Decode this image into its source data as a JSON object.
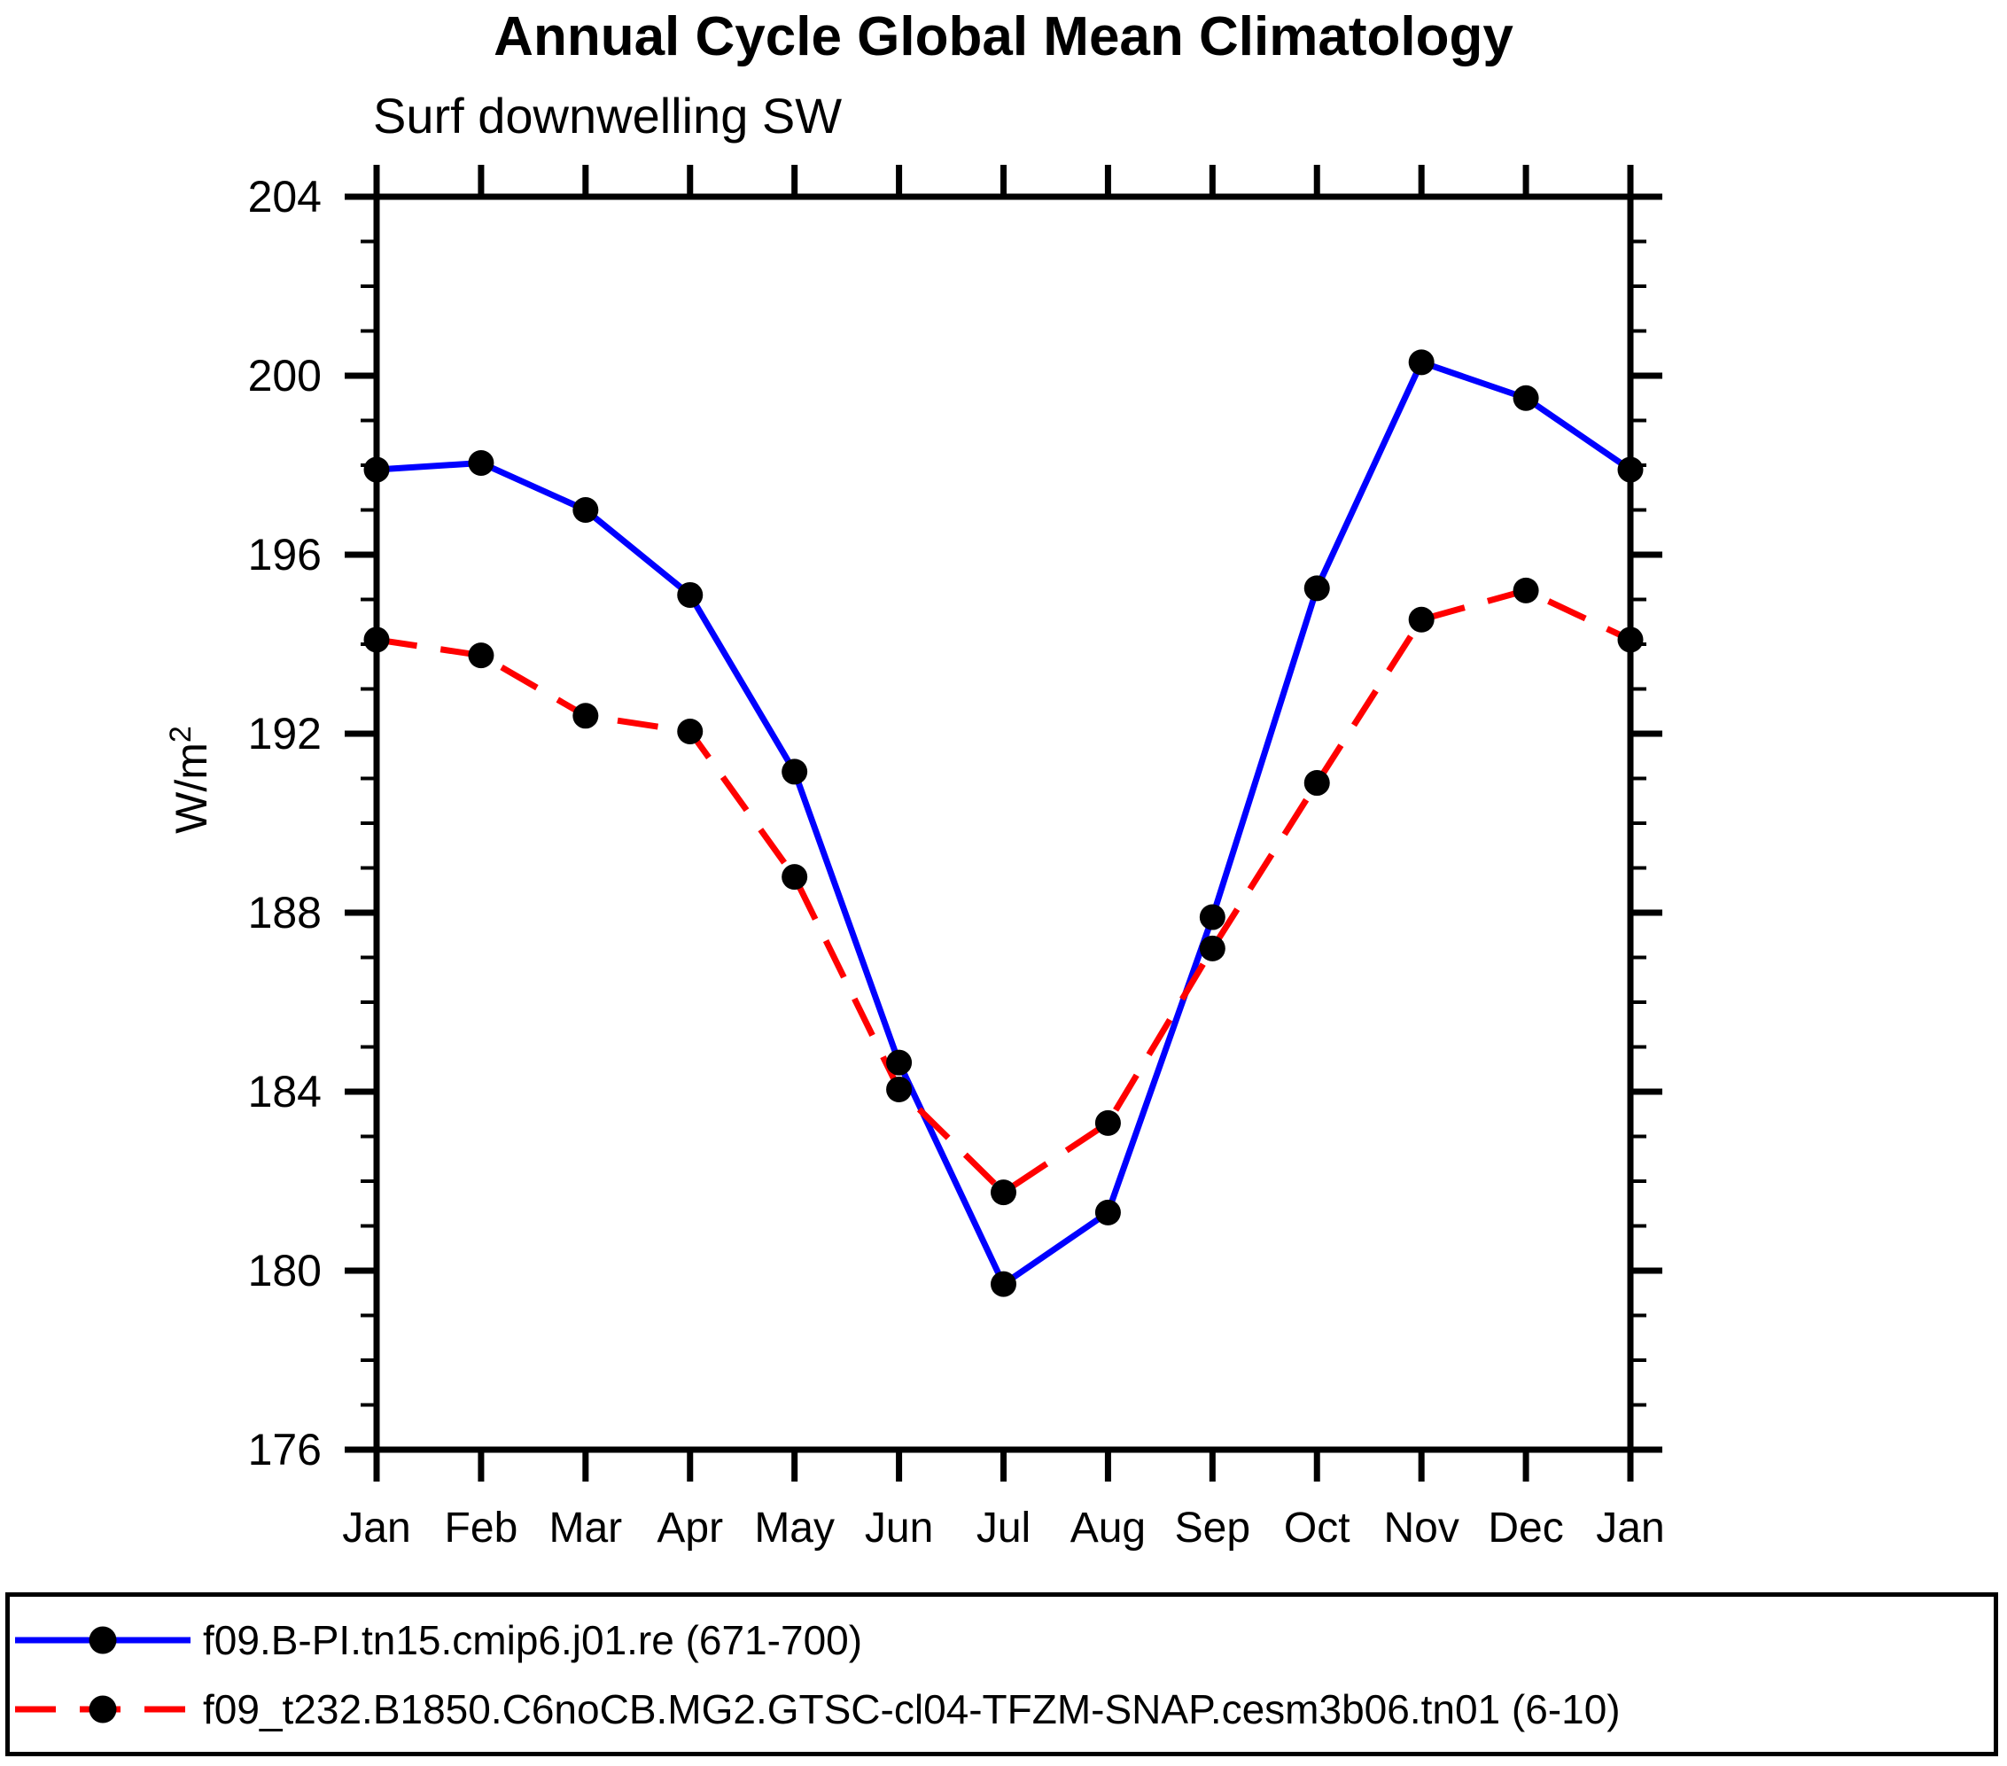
{
  "title": "Annual Cycle Global Mean Climatology",
  "subtitle": "Surf downwelling SW",
  "ylabel": {
    "base": "W/m",
    "sup": "2"
  },
  "chart_data": {
    "type": "line",
    "title": "Annual Cycle Global Mean Climatology",
    "subtitle": "Surf downwelling SW",
    "xlabel": "",
    "ylabel": "W/m^2",
    "x_categories": [
      "Jan",
      "Feb",
      "Mar",
      "Apr",
      "May",
      "Jun",
      "Jul",
      "Aug",
      "Sep",
      "Oct",
      "Nov",
      "Dec",
      "Jan"
    ],
    "ylim": [
      176,
      204
    ],
    "ytick_major_step": 4,
    "ytick_minor_step": 1,
    "ytick_labels": [
      "176",
      "180",
      "184",
      "188",
      "192",
      "196",
      "200",
      "204"
    ],
    "grid": false,
    "legend_position": "bottom",
    "frame_color": "#000000",
    "marker_color": "#000000",
    "series": [
      {
        "name": "f09.B-PI.tn15.cmip6.j01.re (671-700)",
        "color": "#0000ff",
        "style": "solid",
        "marker": "circle",
        "values": [
          197.9,
          198.05,
          197.0,
          195.1,
          191.15,
          184.65,
          179.7,
          181.3,
          187.9,
          195.25,
          200.3,
          199.5,
          197.9
        ]
      },
      {
        "name": "f09_t232.B1850.C6noCB.MG2.GTSC-cl04-TFZM-SNAP.cesm3b06.tn01 (6-10)",
        "color": "#ff0000",
        "style": "dashed",
        "marker": "circle",
        "values": [
          194.1,
          193.75,
          192.4,
          192.05,
          188.8,
          184.05,
          181.75,
          183.3,
          187.2,
          190.9,
          194.55,
          195.2,
          194.1
        ]
      }
    ]
  }
}
